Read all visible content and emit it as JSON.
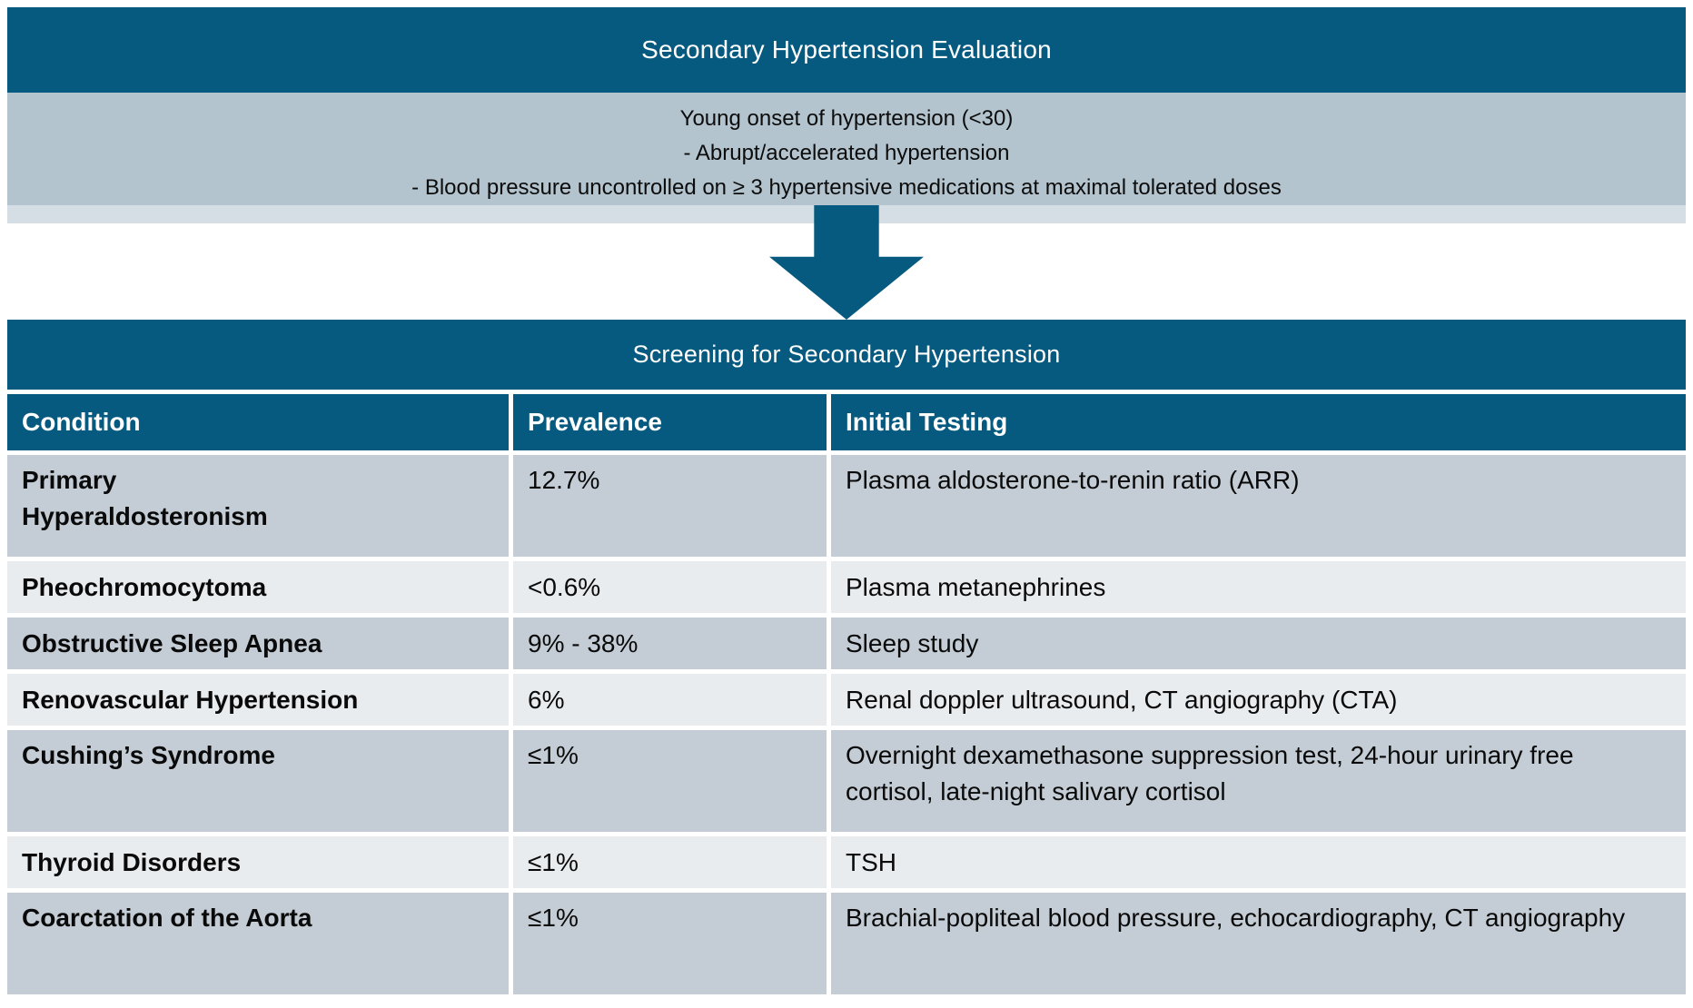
{
  "colors": {
    "teal": "#065a7f",
    "criteria_box_bg": "#b3c4ce",
    "criteria_box_strip": "#d4dee4",
    "row_dark": "#c4cdd5",
    "row_light": "#e9ecef",
    "header_text": "#ffffff",
    "body_text": "#0a0a0a"
  },
  "top_header": {
    "title": "Secondary Hypertension Evaluation"
  },
  "criteria_box": {
    "line1": "Young onset of hypertension (<30)",
    "line2": "- Abrupt/accelerated hypertension",
    "line3": "- Blood pressure uncontrolled on ≥ 3 hypertensive medications at maximal tolerated doses"
  },
  "arrow": {
    "direction": "down"
  },
  "screening_header": {
    "title": "Screening for Secondary Hypertension"
  },
  "table": {
    "columns": {
      "condition": "Condition",
      "prevalence": "Prevalence",
      "testing": "Initial Testing"
    },
    "rows": [
      {
        "condition": "Primary Hyperaldosteronism",
        "prevalence": "12.7%",
        "testing": "Plasma aldosterone-to-renin ratio (ARR)"
      },
      {
        "condition": "Pheochromocytoma",
        "prevalence": "<0.6%",
        "testing": "Plasma metanephrines"
      },
      {
        "condition": "Obstructive Sleep Apnea",
        "prevalence": "9% - 38%",
        "testing": "Sleep study"
      },
      {
        "condition": "Renovascular Hypertension",
        "prevalence": "6%",
        "testing": "Renal doppler ultrasound, CT angiography (CTA)"
      },
      {
        "condition": "Cushing’s Syndrome",
        "prevalence": "≤1%",
        "testing": "Overnight dexamethasone suppression test, 24-hour urinary free cortisol, late-night salivary cortisol"
      },
      {
        "condition": "Thyroid Disorders",
        "prevalence": "≤1%",
        "testing": "TSH"
      },
      {
        "condition": "Coarctation of the Aorta",
        "prevalence": "≤1%",
        "testing": "Brachial-popliteal blood pressure, echocardiography, CT angiography"
      }
    ]
  }
}
